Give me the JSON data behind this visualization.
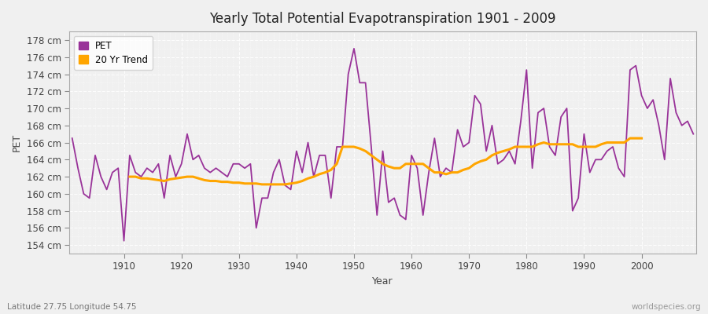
{
  "title": "Yearly Total Potential Evapotranspiration 1901 - 2009",
  "xlabel": "Year",
  "ylabel": "PET",
  "subtitle_left": "Latitude 27.75 Longitude 54.75",
  "subtitle_right": "worldspecies.org",
  "pet_color": "#993399",
  "trend_color": "#ffa500",
  "background_color": "#f0f0f0",
  "plot_bg_color": "#f4f4f4",
  "ylim": [
    153,
    179
  ],
  "ytick_step": 2,
  "years": [
    1901,
    1902,
    1903,
    1904,
    1905,
    1906,
    1907,
    1908,
    1909,
    1910,
    1911,
    1912,
    1913,
    1914,
    1915,
    1916,
    1917,
    1918,
    1919,
    1920,
    1921,
    1922,
    1923,
    1924,
    1925,
    1926,
    1927,
    1928,
    1929,
    1930,
    1931,
    1932,
    1933,
    1934,
    1935,
    1936,
    1937,
    1938,
    1939,
    1940,
    1941,
    1942,
    1943,
    1944,
    1945,
    1946,
    1947,
    1948,
    1949,
    1950,
    1951,
    1952,
    1953,
    1954,
    1955,
    1956,
    1957,
    1958,
    1959,
    1960,
    1961,
    1962,
    1963,
    1964,
    1965,
    1966,
    1967,
    1968,
    1969,
    1970,
    1971,
    1972,
    1973,
    1974,
    1975,
    1976,
    1977,
    1978,
    1979,
    1980,
    1981,
    1982,
    1983,
    1984,
    1985,
    1986,
    1987,
    1988,
    1989,
    1990,
    1991,
    1992,
    1993,
    1994,
    1995,
    1996,
    1997,
    1998,
    1999,
    2000,
    2001,
    2002,
    2003,
    2004,
    2005,
    2006,
    2007,
    2008,
    2009
  ],
  "pet_values": [
    166.5,
    163.0,
    160.0,
    159.5,
    164.5,
    162.0,
    160.5,
    162.5,
    163.0,
    154.5,
    164.5,
    162.5,
    162.0,
    163.0,
    162.5,
    163.5,
    159.5,
    164.5,
    162.0,
    163.5,
    167.0,
    164.0,
    164.5,
    163.0,
    162.5,
    163.0,
    162.5,
    162.0,
    163.5,
    163.5,
    163.0,
    163.5,
    156.0,
    159.5,
    159.5,
    162.5,
    164.0,
    161.0,
    160.5,
    165.0,
    162.5,
    166.0,
    162.0,
    164.5,
    164.5,
    159.5,
    165.5,
    165.5,
    174.0,
    177.0,
    173.0,
    173.0,
    165.5,
    157.5,
    165.0,
    159.0,
    159.5,
    157.5,
    157.0,
    164.5,
    163.0,
    157.5,
    162.5,
    166.5,
    162.0,
    163.0,
    162.5,
    167.5,
    165.5,
    166.0,
    171.5,
    170.5,
    165.0,
    168.0,
    163.5,
    164.0,
    165.0,
    163.5,
    168.5,
    174.5,
    163.0,
    169.5,
    170.0,
    165.5,
    164.5,
    169.0,
    170.0,
    158.0,
    159.5,
    167.0,
    162.5,
    164.0,
    164.0,
    165.0,
    165.5,
    163.0,
    162.0,
    174.5,
    175.0,
    171.5,
    170.0,
    171.0,
    168.0,
    164.0,
    173.5,
    169.5,
    168.0,
    168.5,
    167.0
  ],
  "trend_values": [
    null,
    null,
    null,
    null,
    null,
    null,
    null,
    null,
    null,
    null,
    162.0,
    162.0,
    161.8,
    161.8,
    161.7,
    161.6,
    161.5,
    161.7,
    161.8,
    161.9,
    162.0,
    162.0,
    161.8,
    161.6,
    161.5,
    161.5,
    161.4,
    161.4,
    161.3,
    161.3,
    161.2,
    161.2,
    161.2,
    161.1,
    161.1,
    161.1,
    161.1,
    161.1,
    161.2,
    161.3,
    161.5,
    161.8,
    162.0,
    162.3,
    162.5,
    162.8,
    163.5,
    165.5,
    165.5,
    165.5,
    165.3,
    165.0,
    164.5,
    164.0,
    163.5,
    163.2,
    163.0,
    163.0,
    163.5,
    163.5,
    163.5,
    163.5,
    163.0,
    162.5,
    162.5,
    162.3,
    162.5,
    162.5,
    162.8,
    163.0,
    163.5,
    163.8,
    164.0,
    164.5,
    164.8,
    165.0,
    165.2,
    165.5,
    165.5,
    165.5,
    165.5,
    165.8,
    166.0,
    165.8,
    165.8,
    165.8,
    165.8,
    165.8,
    165.5,
    165.5,
    165.5,
    165.5,
    165.8,
    166.0,
    166.0,
    166.0,
    166.0,
    166.5,
    166.5,
    166.5,
    null,
    null,
    null,
    null,
    null,
    null,
    null,
    null,
    null
  ]
}
